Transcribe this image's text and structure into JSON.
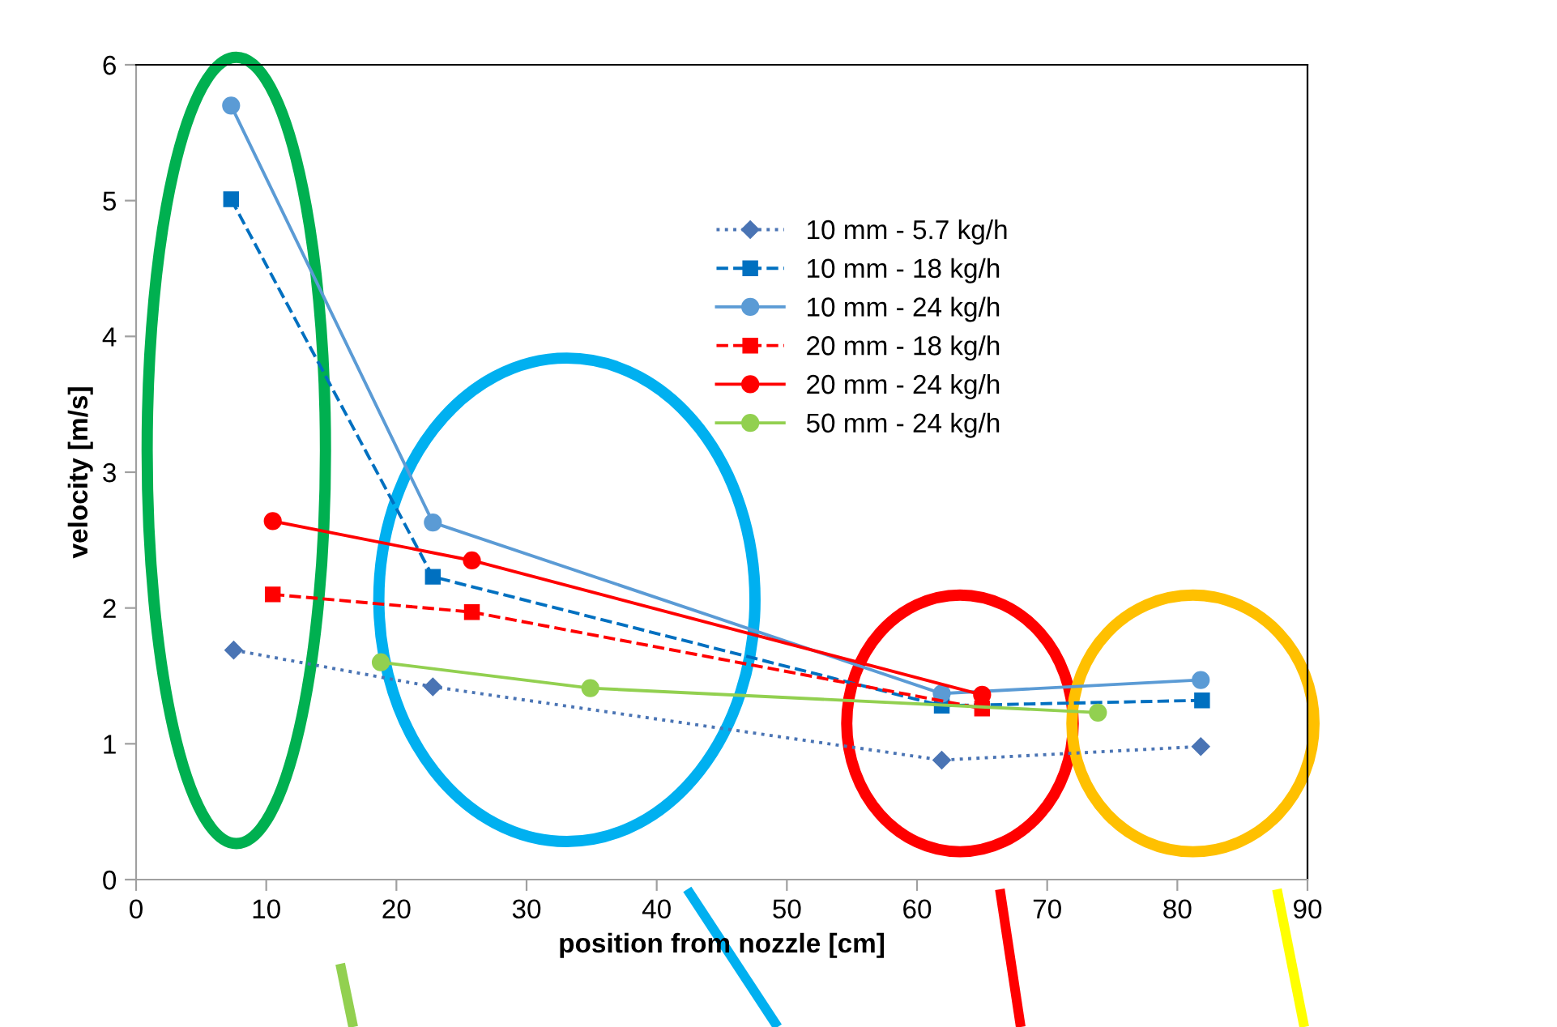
{
  "chart_data": {
    "type": "line",
    "xlabel": "position from nozzle [cm]",
    "ylabel": "velocity [m/s]",
    "xlim": [
      0,
      90
    ],
    "xticks": [
      0,
      10,
      20,
      30,
      40,
      50,
      60,
      70,
      80,
      90
    ],
    "ylim": [
      0,
      6
    ],
    "yticks": [
      0,
      1,
      2,
      3,
      4,
      5,
      6
    ],
    "grid": false,
    "legend": "top",
    "series": [
      {
        "name": "10 mm - 5.7 kg/h",
        "color": "#4a74b4",
        "marker": "diamond",
        "line_style": "dotted",
        "x": [
          7.5,
          22.8,
          61.9,
          81.8
        ],
        "values": [
          1.69,
          1.42,
          0.88,
          0.98
        ]
      },
      {
        "name": "10 mm - 18 kg/h",
        "color": "#0070c0",
        "marker": "square",
        "line_style": "dashed",
        "x": [
          7.3,
          22.8,
          61.9,
          81.9
        ],
        "values": [
          5.01,
          2.23,
          1.28,
          1.32
        ]
      },
      {
        "name": "10 mm - 24 kg/h",
        "color": "#5b9bd5",
        "marker": "circle",
        "line_style": "solid",
        "x": [
          7.3,
          22.8,
          61.9,
          81.8
        ],
        "values": [
          5.7,
          2.63,
          1.37,
          1.47
        ]
      },
      {
        "name": "20 mm - 18 kg/h",
        "color": "#ff0000",
        "marker": "square",
        "line_style": "dashed",
        "x": [
          10.5,
          25.8,
          65.0
        ],
        "values": [
          2.1,
          1.97,
          1.26
        ]
      },
      {
        "name": "20 mm - 24 kg/h",
        "color": "#ff0000",
        "marker": "circle",
        "line_style": "solid",
        "x": [
          10.5,
          25.8,
          65.0
        ],
        "values": [
          2.64,
          2.35,
          1.36
        ]
      },
      {
        "name": "50 mm - 24 kg/h",
        "color": "#92d050",
        "marker": "circle",
        "line_style": "solid",
        "x": [
          18.8,
          34.9,
          73.9
        ],
        "values": [
          1.6,
          1.41,
          1.23
        ]
      }
    ]
  }
}
